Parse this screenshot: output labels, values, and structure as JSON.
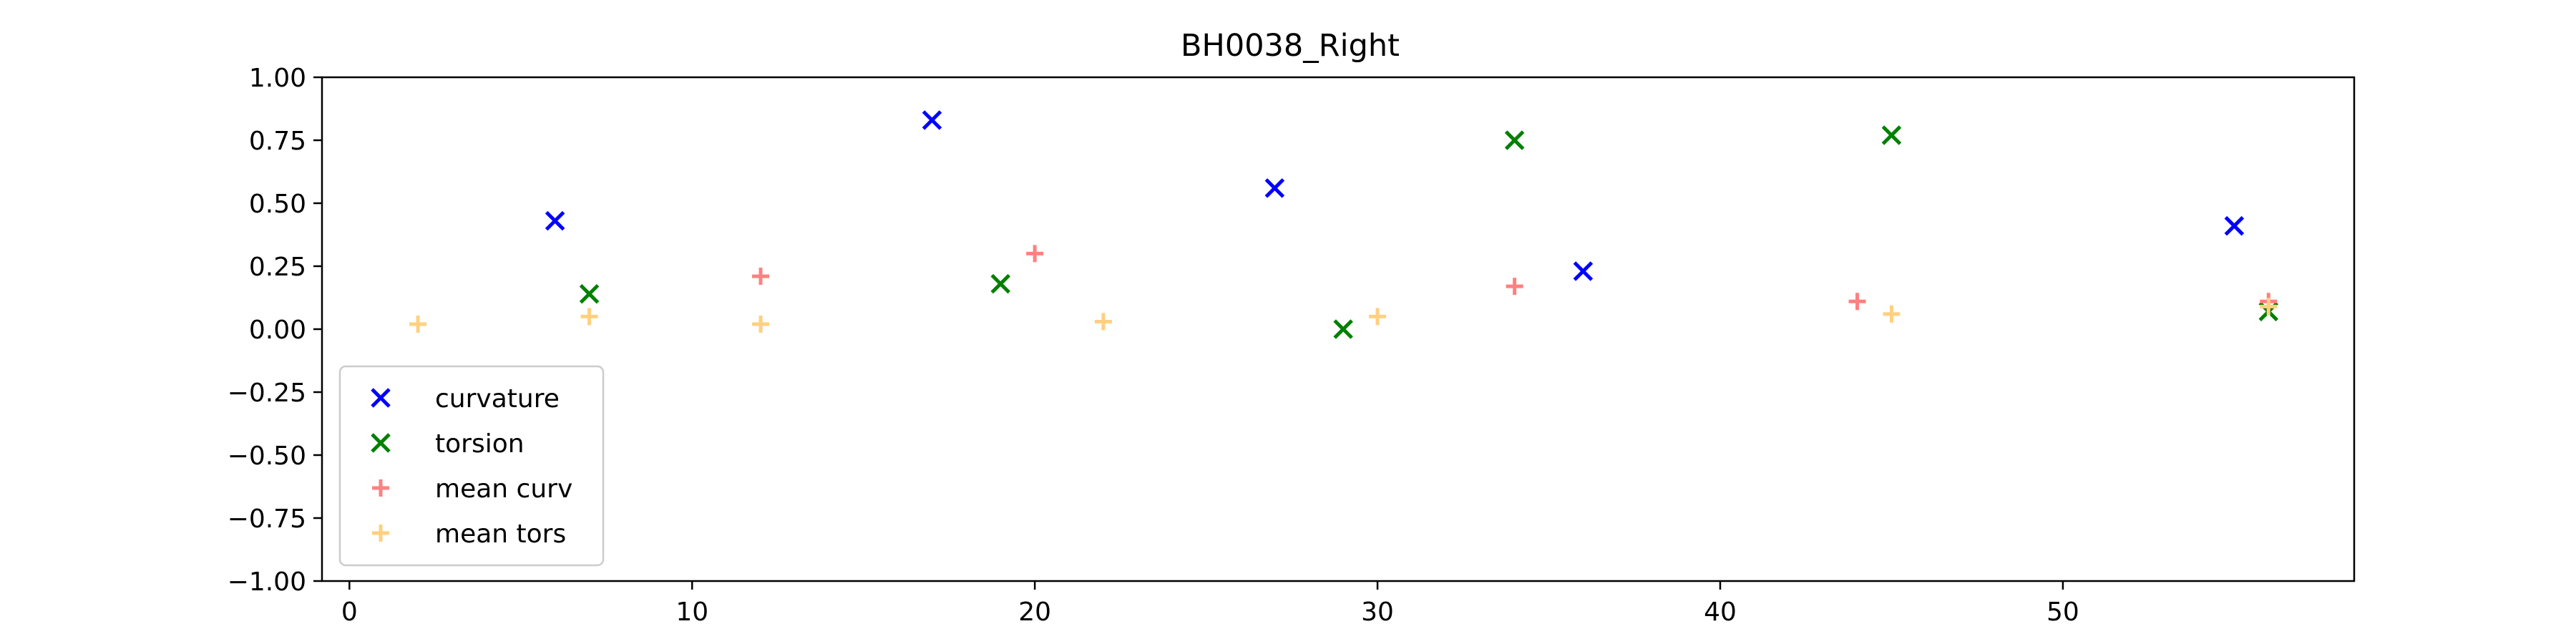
{
  "chart_data": {
    "type": "scatter",
    "title": "BH0038_Right",
    "xlabel": "",
    "ylabel": "",
    "xlim": [
      -0.8,
      58.5
    ],
    "ylim": [
      -1.0,
      1.0
    ],
    "xticks": [
      0,
      10,
      20,
      30,
      40,
      50
    ],
    "xtick_labels": [
      "0",
      "10",
      "20",
      "30",
      "40",
      "50"
    ],
    "yticks": [
      1.0,
      0.75,
      0.5,
      0.25,
      0.0,
      -0.25,
      -0.5,
      -0.75,
      -1.0
    ],
    "ytick_labels": [
      "1.00",
      "0.75",
      "0.50",
      "0.25",
      "0.00",
      "−0.25",
      "−0.50",
      "−0.75",
      "−1.00"
    ],
    "grid": false,
    "legend_position": "lower-left",
    "series": [
      {
        "name": "curvature",
        "marker": "x",
        "color": "#0000ff",
        "x": [
          6,
          17,
          27,
          36,
          55
        ],
        "y": [
          0.43,
          0.83,
          0.56,
          0.23,
          0.41
        ]
      },
      {
        "name": "torsion",
        "marker": "x",
        "color": "#008000",
        "x": [
          7,
          19,
          29,
          34,
          45,
          56
        ],
        "y": [
          0.14,
          0.18,
          0.0,
          0.75,
          0.77,
          0.07
        ]
      },
      {
        "name": "mean curv",
        "marker": "+",
        "color": "#ff8080",
        "x": [
          12,
          20,
          34,
          44,
          56
        ],
        "y": [
          0.21,
          0.3,
          0.17,
          0.11,
          0.11
        ]
      },
      {
        "name": "mean tors",
        "marker": "+",
        "color": "#ffd080",
        "x": [
          2,
          7,
          12,
          22,
          30,
          45,
          56
        ],
        "y": [
          0.02,
          0.05,
          0.02,
          0.03,
          0.05,
          0.06,
          0.09
        ]
      }
    ]
  }
}
